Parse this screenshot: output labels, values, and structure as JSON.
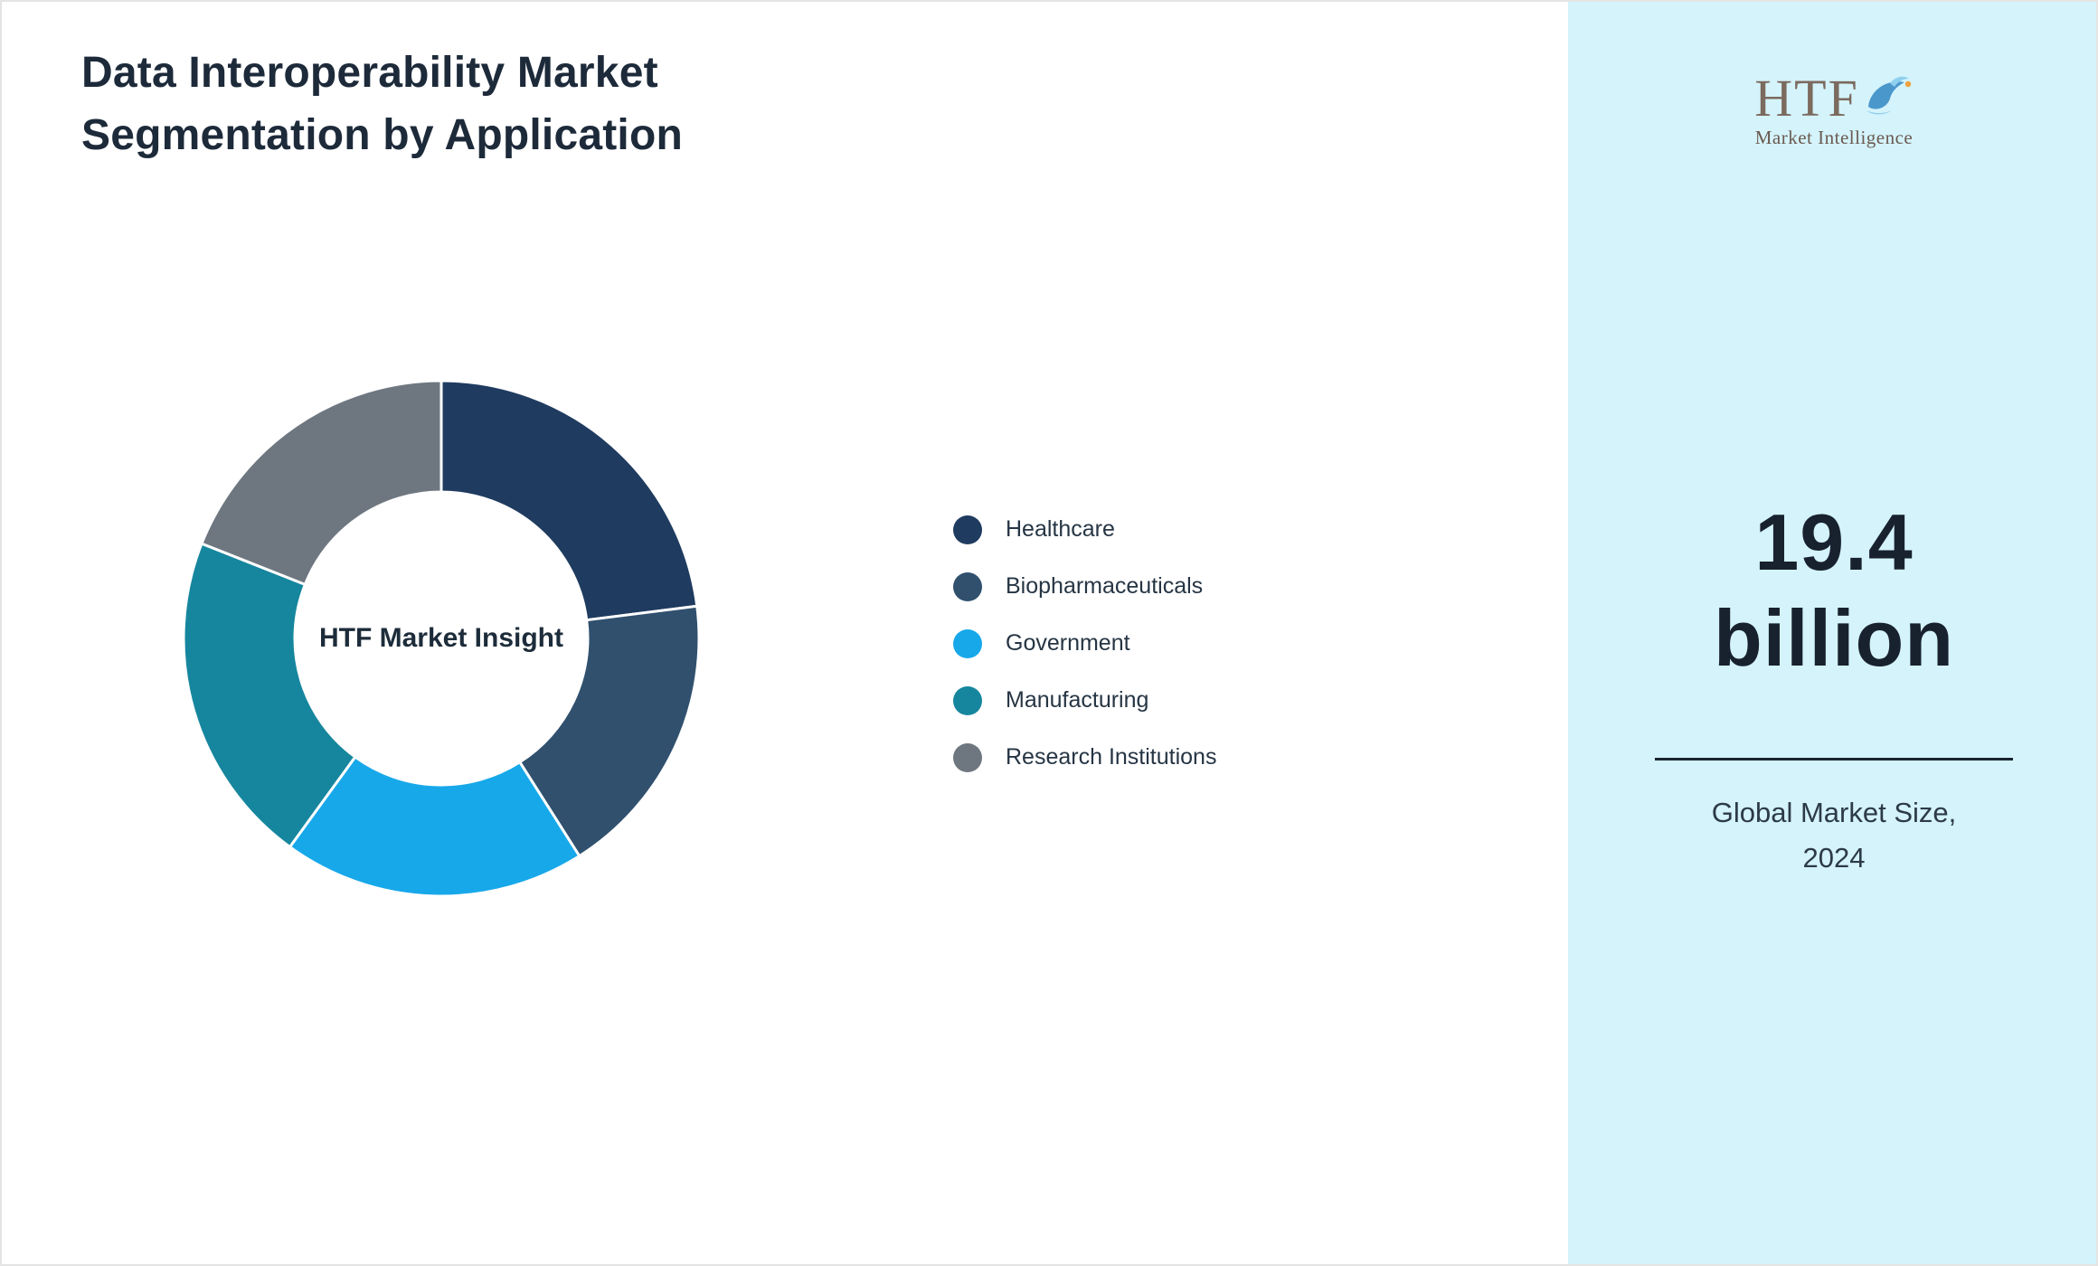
{
  "title": {
    "line1": "Data Interoperability Market",
    "line2": "Segmentation by Application"
  },
  "chart_data": {
    "type": "pie",
    "subtype": "donut",
    "title": "Data Interoperability Market Segmentation by Application",
    "center_label": "HTF Market Insight",
    "categories": [
      "Healthcare",
      "Biopharmaceuticals",
      "Government",
      "Manufacturing",
      "Research Institutions"
    ],
    "values": [
      23,
      18,
      19,
      21,
      19
    ],
    "values_note": "percent shares estimated from arc angles; no numeric labels shown in chart",
    "colors": [
      "#1f3b60",
      "#30506e",
      "#17a8ea",
      "#16869e",
      "#6e7780"
    ],
    "legend_position": "right",
    "start_angle_deg": 0,
    "direction": "clockwise",
    "donut_hole_ratio": 0.57,
    "slice_gap_color": "#ffffff"
  },
  "side_panel": {
    "background": "#d4f3fb",
    "logo": {
      "text": "HTF",
      "subtext": "Market Intelligence",
      "icon": "dolphin-icon",
      "text_color": "#7b6a5e",
      "icon_color": "#4a97cc"
    },
    "value_line1": "19.4",
    "value_line2": "billion",
    "caption_line1": "Global Market Size,",
    "caption_line2": "2024"
  }
}
